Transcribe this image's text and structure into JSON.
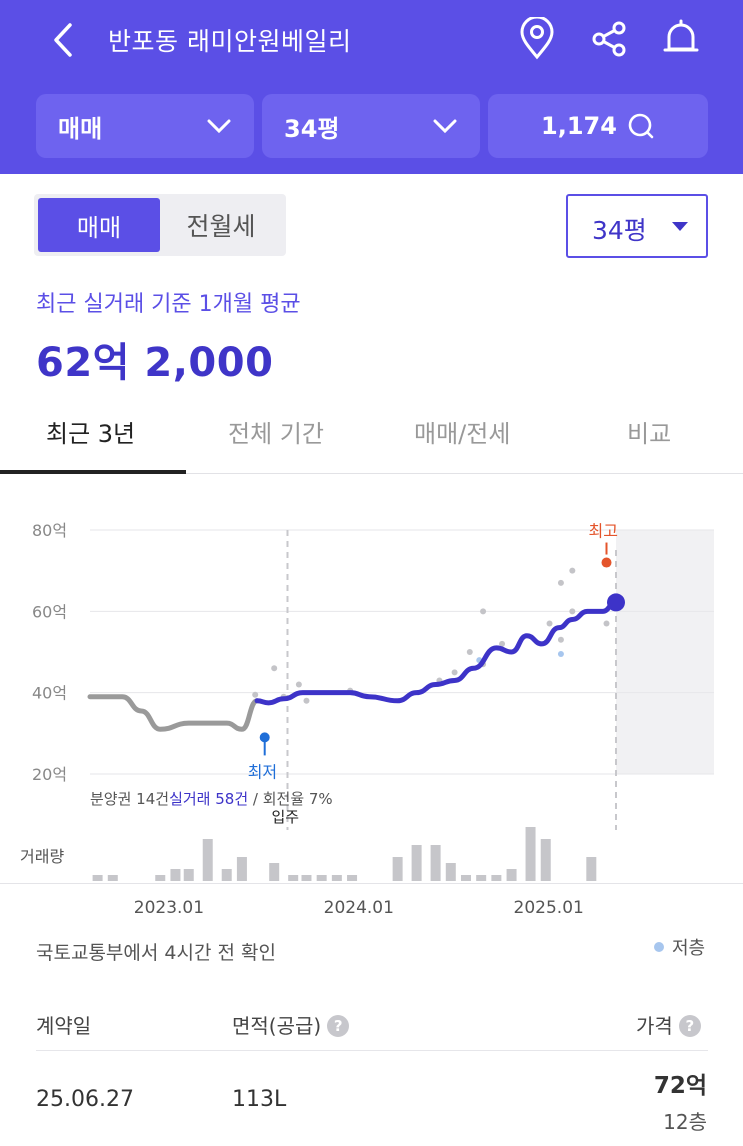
{
  "header": {
    "title": "반포동 래미안원베일리",
    "icons": [
      "back-icon",
      "location-pin-icon",
      "share-icon",
      "bell-icon"
    ],
    "filter_trade": "매매",
    "filter_size": "34평",
    "comments_count": "1,174"
  },
  "toggle": {
    "active": "매매",
    "inactive": "전월세"
  },
  "size_select": "34평",
  "average": {
    "label": "최근 실거래 기준 1개월 평균",
    "value": "62억 2,000"
  },
  "tabs": [
    {
      "label": "최근 3년",
      "active": true
    },
    {
      "label": "전체 기간",
      "active": false
    },
    {
      "label": "매매/전세",
      "active": false
    },
    {
      "label": "비교",
      "active": false
    }
  ],
  "chart_data": {
    "type": "line",
    "y_ticks": [
      "80억",
      "60억",
      "40억",
      "20억"
    ],
    "ylim": [
      20,
      80
    ],
    "x_ticks": [
      "2023.01",
      "2024.01",
      "2025.01"
    ],
    "annotations": {
      "high": "최고",
      "low": "최저",
      "move_in": "입주"
    },
    "stats": {
      "presale_prefix": "분양권 14건",
      "real_trade": "실거래 58건",
      "turnover": " / 회전율 7%"
    },
    "volume_label": "거래량",
    "x": [
      2022.58,
      2022.75,
      2022.85,
      2022.95,
      2023.1,
      2023.3,
      2023.38,
      2023.46,
      2023.52,
      2023.6,
      2023.7,
      2023.8,
      2023.95,
      2024.05,
      2024.2,
      2024.3,
      2024.4,
      2024.5,
      2024.6,
      2024.72,
      2024.8,
      2024.88,
      2024.96,
      2025.05,
      2025.12,
      2025.2,
      2025.28,
      2025.35
    ],
    "series": [
      {
        "values": [
          39,
          39,
          35.5,
          31,
          32.5,
          32.5,
          31,
          38,
          37.5,
          38.5,
          40,
          40,
          40,
          39,
          38,
          40,
          42,
          43,
          46,
          51,
          50,
          54,
          52,
          56,
          58,
          60,
          60,
          62.2
        ],
        "color_main": "#3d33c8",
        "color_presale": "#9a9a9a"
      }
    ],
    "high_marker": {
      "x": 2025.3,
      "y": 72
    },
    "low_marker": {
      "x": 2023.5,
      "y": 29
    },
    "scatter": [
      {
        "x": 2023.45,
        "y": 39.5
      },
      {
        "x": 2023.55,
        "y": 46
      },
      {
        "x": 2023.6,
        "y": 39
      },
      {
        "x": 2023.68,
        "y": 42
      },
      {
        "x": 2023.72,
        "y": 38
      },
      {
        "x": 2023.95,
        "y": 40.5
      },
      {
        "x": 2024.42,
        "y": 43
      },
      {
        "x": 2024.5,
        "y": 45
      },
      {
        "x": 2024.58,
        "y": 50
      },
      {
        "x": 2024.65,
        "y": 47
      },
      {
        "x": 2024.65,
        "y": 60
      },
      {
        "x": 2024.75,
        "y": 52
      },
      {
        "x": 2025.0,
        "y": 57
      },
      {
        "x": 2025.06,
        "y": 53
      },
      {
        "x": 2025.06,
        "y": 67
      },
      {
        "x": 2025.12,
        "y": 60
      },
      {
        "x": 2025.12,
        "y": 70
      },
      {
        "x": 2025.3,
        "y": 57
      }
    ],
    "scatter_low": [
      {
        "x": 2024.63,
        "y": 48
      },
      {
        "x": 2025.06,
        "y": 49.5
      }
    ],
    "volume": [
      {
        "x": 2022.62,
        "v": 1
      },
      {
        "x": 2022.7,
        "v": 1
      },
      {
        "x": 2022.95,
        "v": 1
      },
      {
        "x": 2023.03,
        "v": 2
      },
      {
        "x": 2023.1,
        "v": 2
      },
      {
        "x": 2023.2,
        "v": 7
      },
      {
        "x": 2023.3,
        "v": 2
      },
      {
        "x": 2023.38,
        "v": 4
      },
      {
        "x": 2023.55,
        "v": 3
      },
      {
        "x": 2023.65,
        "v": 1
      },
      {
        "x": 2023.72,
        "v": 1
      },
      {
        "x": 2023.8,
        "v": 1
      },
      {
        "x": 2023.88,
        "v": 1
      },
      {
        "x": 2023.96,
        "v": 1
      },
      {
        "x": 2024.2,
        "v": 4
      },
      {
        "x": 2024.3,
        "v": 6
      },
      {
        "x": 2024.4,
        "v": 6
      },
      {
        "x": 2024.48,
        "v": 3
      },
      {
        "x": 2024.56,
        "v": 1
      },
      {
        "x": 2024.64,
        "v": 1
      },
      {
        "x": 2024.72,
        "v": 1
      },
      {
        "x": 2024.8,
        "v": 2
      },
      {
        "x": 2024.9,
        "v": 9
      },
      {
        "x": 2024.98,
        "v": 7
      },
      {
        "x": 2025.22,
        "v": 4
      }
    ]
  },
  "source": "국토교통부에서 4시간 전 확인",
  "legend_low": "저층",
  "table": {
    "headers": {
      "date": "계약일",
      "area": "면적(공급)",
      "price": "가격"
    },
    "rows": [
      {
        "date": "25.06.27",
        "area": "113L",
        "price": "72억",
        "floor": "12층"
      }
    ]
  }
}
